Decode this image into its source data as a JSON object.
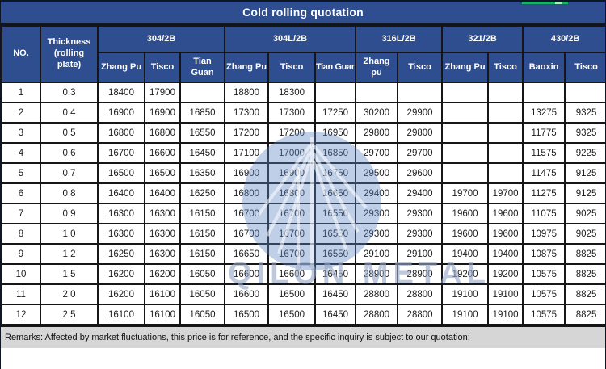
{
  "title": "Cold rolling quotation",
  "remarks": "Remarks: Affected by market fluctuations, this price is for reference, and the specific inquiry is subject to our quotation;",
  "watermark": {
    "text": "QILON METAL"
  },
  "colors": {
    "header_bg": "#2E4E90",
    "border": "#161616",
    "remarks_bg": "#D6D6D6",
    "selection_green": "#1FAE6A",
    "selection_knob": "#A9EDC8",
    "watermark_blue": "rgba(96,136,198,0.40)",
    "watermark_text": "rgba(148,167,200,0.62)"
  },
  "table": {
    "corner_headers": [
      "NO.",
      "Thickness (rolling plate)"
    ],
    "groups": [
      {
        "label": "304/2B",
        "subs": [
          "Zhang Pu",
          "Tisco",
          "Tian Guan"
        ]
      },
      {
        "label": "304L/2B",
        "subs": [
          "Zhang Pu",
          "Tisco",
          "Tian Guan"
        ]
      },
      {
        "label": "316L/2B",
        "subs": [
          "Zhangpu",
          "Tisco"
        ]
      },
      {
        "label": "321/2B",
        "subs": [
          "Zhang Pu",
          "Tisco"
        ]
      },
      {
        "label": "430/2B",
        "subs": [
          "Baoxin",
          "Tisco"
        ]
      }
    ],
    "rows": [
      {
        "no": "1",
        "thickness": "0.3",
        "values": [
          "18400",
          "17900",
          "",
          "18800",
          "18300",
          "",
          "",
          "",
          "",
          "",
          "",
          ""
        ]
      },
      {
        "no": "2",
        "thickness": "0.4",
        "values": [
          "16900",
          "16900",
          "16850",
          "17300",
          "17300",
          "17250",
          "30200",
          "29900",
          "",
          "",
          "13275",
          "9325"
        ]
      },
      {
        "no": "3",
        "thickness": "0.5",
        "values": [
          "16800",
          "16800",
          "16550",
          "17200",
          "17200",
          "16950",
          "29800",
          "29800",
          "",
          "",
          "11775",
          "9325"
        ]
      },
      {
        "no": "4",
        "thickness": "0.6",
        "values": [
          "16700",
          "16600",
          "16450",
          "17100",
          "17000",
          "16850",
          "29700",
          "29700",
          "",
          "",
          "11575",
          "9225"
        ]
      },
      {
        "no": "5",
        "thickness": "0.7",
        "values": [
          "16500",
          "16500",
          "16350",
          "16900",
          "16900",
          "16750",
          "29500",
          "29600",
          "",
          "",
          "11475",
          "9125"
        ]
      },
      {
        "no": "6",
        "thickness": "0.8",
        "values": [
          "16400",
          "16400",
          "16250",
          "16800",
          "16800",
          "16650",
          "29400",
          "29400",
          "19700",
          "19700",
          "11275",
          "9125"
        ]
      },
      {
        "no": "7",
        "thickness": "0.9",
        "values": [
          "16300",
          "16300",
          "16150",
          "16700",
          "16700",
          "16550",
          "29300",
          "29300",
          "19600",
          "19600",
          "11075",
          "9025"
        ]
      },
      {
        "no": "8",
        "thickness": "1.0",
        "values": [
          "16300",
          "16300",
          "16150",
          "16700",
          "16700",
          "16550",
          "29300",
          "29300",
          "19600",
          "19600",
          "10975",
          "9025"
        ]
      },
      {
        "no": "9",
        "thickness": "1.2",
        "values": [
          "16250",
          "16300",
          "16150",
          "16650",
          "16700",
          "16550",
          "29100",
          "29100",
          "19400",
          "19400",
          "10875",
          "8825"
        ]
      },
      {
        "no": "10",
        "thickness": "1.5",
        "values": [
          "16200",
          "16200",
          "16050",
          "16600",
          "16600",
          "16450",
          "28900",
          "28900",
          "19200",
          "19200",
          "10575",
          "8825"
        ]
      },
      {
        "no": "11",
        "thickness": "2.0",
        "values": [
          "16200",
          "16100",
          "16050",
          "16600",
          "16500",
          "16450",
          "28800",
          "28800",
          "19100",
          "19100",
          "10575",
          "8825"
        ]
      },
      {
        "no": "12",
        "thickness": "2.5",
        "values": [
          "16100",
          "16100",
          "16050",
          "16500",
          "16500",
          "16450",
          "28800",
          "28800",
          "19100",
          "19100",
          "10575",
          "8825"
        ]
      }
    ]
  }
}
